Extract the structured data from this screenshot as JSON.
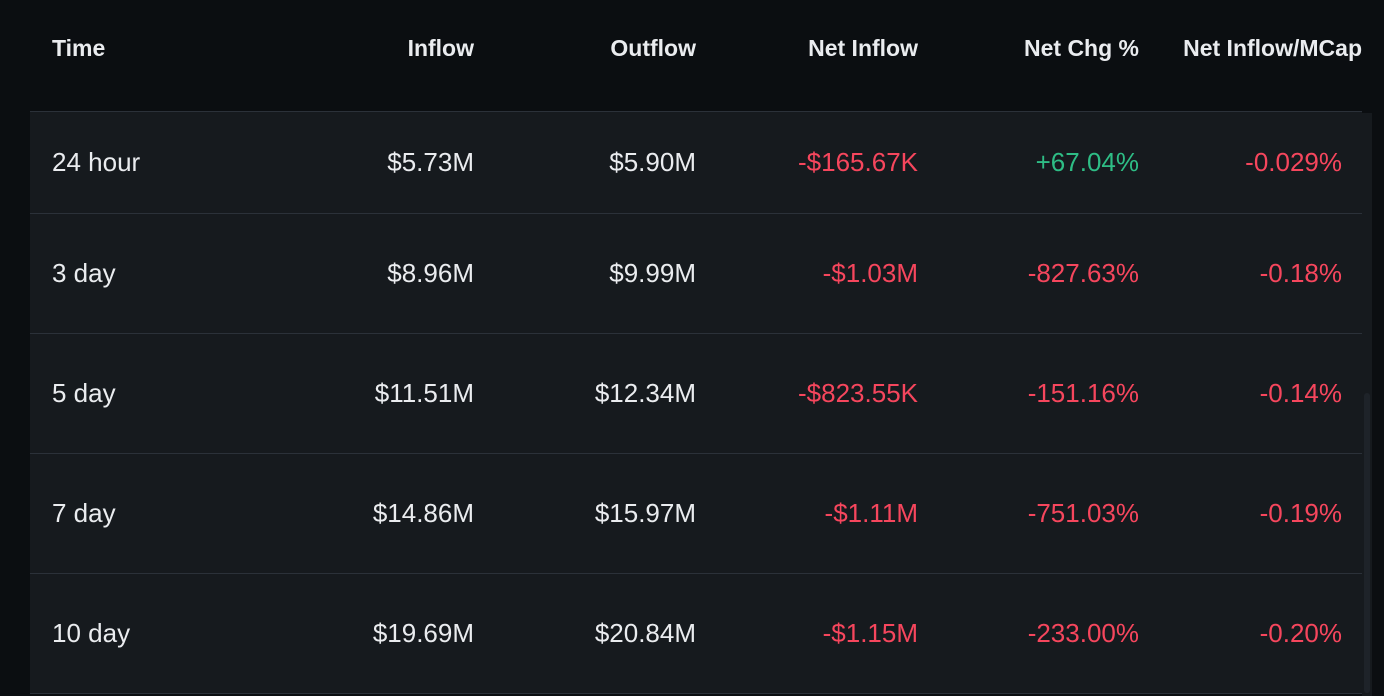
{
  "table": {
    "headers": {
      "time": "Time",
      "inflow": "Inflow",
      "outflow": "Outflow",
      "net_inflow": "Net Inflow",
      "net_chg": "Net Chg %",
      "net_inflow_mcap": "Net Inflow/MCap"
    },
    "rows": [
      {
        "time": "24 hour",
        "inflow": "$5.73M",
        "outflow": "$5.90M",
        "net_inflow": "-$165.67K",
        "net_chg": "+67.04%",
        "net_inflow_mcap": "-0.029%"
      },
      {
        "time": "3 day",
        "inflow": "$8.96M",
        "outflow": "$9.99M",
        "net_inflow": "-$1.03M",
        "net_chg": "-827.63%",
        "net_inflow_mcap": "-0.18%"
      },
      {
        "time": "5 day",
        "inflow": "$11.51M",
        "outflow": "$12.34M",
        "net_inflow": "-$823.55K",
        "net_chg": "-151.16%",
        "net_inflow_mcap": "-0.14%"
      },
      {
        "time": "7 day",
        "inflow": "$14.86M",
        "outflow": "$15.97M",
        "net_inflow": "-$1.11M",
        "net_chg": "-751.03%",
        "net_inflow_mcap": "-0.19%"
      },
      {
        "time": "10 day",
        "inflow": "$19.69M",
        "outflow": "$20.84M",
        "net_inflow": "-$1.15M",
        "net_chg": "-233.00%",
        "net_inflow_mcap": "-0.20%"
      }
    ]
  },
  "colors": {
    "background": "#0b0e11",
    "row_background": "#161a1e",
    "text": "#eaecef",
    "negative": "#f6465d",
    "positive": "#2ebd85"
  }
}
